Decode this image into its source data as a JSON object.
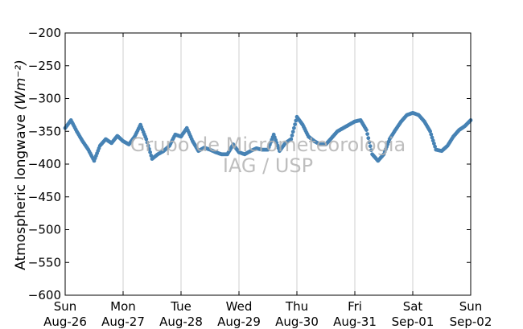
{
  "chart_data": {
    "type": "scatter",
    "ylabel": "Atmospheric longwave",
    "ylabel_unit": "(Wm⁻²)",
    "watermark": [
      "Grupo de Micrometeorologia",
      "IAG / USP"
    ],
    "ylim": [
      -600,
      -200
    ],
    "yticks": [
      -200,
      -250,
      -300,
      -350,
      -400,
      -450,
      -500,
      -550,
      -600
    ],
    "xlim": [
      "2012-08-26",
      "2012-09-02"
    ],
    "xticks": [
      {
        "day": "Sun",
        "date": "Aug-26"
      },
      {
        "day": "Mon",
        "date": "Aug-27"
      },
      {
        "day": "Tue",
        "date": "Aug-28"
      },
      {
        "day": "Wed",
        "date": "Aug-29"
      },
      {
        "day": "Thu",
        "date": "Aug-30"
      },
      {
        "day": "Fri",
        "date": "Aug-31"
      },
      {
        "day": "Sat",
        "date": "Sep-01"
      },
      {
        "day": "Sun",
        "date": "Sep-02"
      }
    ],
    "grid": "vertical",
    "marker_color": "#4682b4",
    "series": [
      {
        "x": [
          0.0,
          0.1,
          0.2,
          0.3,
          0.4,
          0.5,
          0.6,
          0.7,
          0.8,
          0.9,
          1.0,
          1.1,
          1.2,
          1.3,
          1.4,
          1.5,
          1.6,
          1.7,
          1.8,
          1.9,
          2.0,
          2.1,
          2.2,
          2.3,
          2.4,
          2.5,
          2.6,
          2.7,
          2.8,
          2.9,
          3.0,
          3.1,
          3.2,
          3.3,
          3.4,
          3.5,
          3.6,
          3.7,
          3.8,
          3.9,
          4.0,
          4.1,
          4.2,
          4.3,
          4.4,
          4.5,
          4.6,
          4.7,
          4.8,
          4.9,
          5.0,
          5.1,
          5.2,
          5.3,
          5.4,
          5.5,
          5.6,
          5.7,
          5.8,
          5.9,
          6.0,
          6.1,
          6.2,
          6.3,
          6.4,
          6.5,
          6.6,
          6.7,
          6.8,
          6.9,
          7.0
        ],
        "y": [
          -345,
          -333,
          -350,
          -365,
          -378,
          -395,
          -372,
          -362,
          -368,
          -357,
          -365,
          -370,
          -358,
          -340,
          -362,
          -392,
          -385,
          -380,
          -372,
          -355,
          -358,
          -345,
          -365,
          -380,
          -375,
          -378,
          -382,
          -385,
          -385,
          -370,
          -382,
          -385,
          -380,
          -376,
          -378,
          -378,
          -355,
          -380,
          -368,
          -362,
          -328,
          -340,
          -358,
          -365,
          -370,
          -370,
          -360,
          -350,
          -345,
          -340,
          -335,
          -333,
          -348,
          -385,
          -395,
          -385,
          -362,
          -348,
          -335,
          -325,
          -322,
          -325,
          -335,
          -350,
          -378,
          -380,
          -372,
          -358,
          -348,
          -342,
          -333
        ]
      }
    ]
  }
}
